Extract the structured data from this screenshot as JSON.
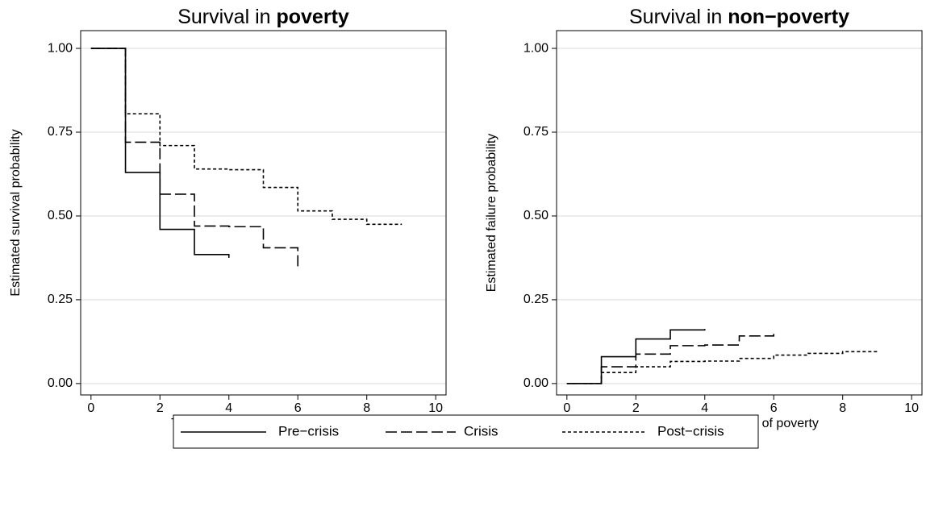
{
  "chart_data": [
    {
      "type": "step",
      "title": "Survival in",
      "title_emphasis": "poverty",
      "xlabel": "Time in years after poverty entry",
      "ylabel": "Estimated survival probability",
      "xlim": [
        -0.3,
        10.3
      ],
      "ylim": [
        -0.034,
        1.053
      ],
      "xticks": [
        0,
        2,
        4,
        6,
        8,
        10
      ],
      "yticks": [
        {
          "value": 0,
          "label": "0.00"
        },
        {
          "value": 0.25,
          "label": "0.25"
        },
        {
          "value": 0.5,
          "label": "0.50"
        },
        {
          "value": 0.75,
          "label": "0.75"
        },
        {
          "value": 1,
          "label": "1.00"
        }
      ],
      "grid": true,
      "series": [
        {
          "name": "Pre−crisis",
          "color": "#000000",
          "dash": "solid",
          "x": [
            0,
            1,
            2,
            3,
            4
          ],
          "values": [
            1,
            0.63,
            0.46,
            0.385,
            0.375
          ]
        },
        {
          "name": "Crisis",
          "color": "#000000",
          "dash": "longdash",
          "x": [
            0,
            1,
            2,
            3,
            4,
            5,
            6
          ],
          "values": [
            1,
            0.72,
            0.565,
            0.47,
            0.468,
            0.405,
            0.35
          ]
        },
        {
          "name": "Post−crisis",
          "color": "#000000",
          "dash": "shortdash",
          "x": [
            0,
            1,
            2,
            3,
            4,
            5,
            6,
            7,
            8,
            9
          ],
          "values": [
            1,
            0.805,
            0.71,
            0.64,
            0.638,
            0.585,
            0.515,
            0.49,
            0.475,
            0.473
          ]
        }
      ]
    },
    {
      "type": "step",
      "title": "Survival in",
      "title_emphasis": "non−poverty",
      "xlabel": "Time in years out of poverty",
      "ylabel": "Estimated failure probability",
      "xlim": [
        -0.3,
        10.3
      ],
      "ylim": [
        -0.034,
        1.053
      ],
      "xticks": [
        0,
        2,
        4,
        6,
        8,
        10
      ],
      "yticks": [
        {
          "value": 0,
          "label": "0.00"
        },
        {
          "value": 0.25,
          "label": "0.25"
        },
        {
          "value": 0.5,
          "label": "0.50"
        },
        {
          "value": 0.75,
          "label": "0.75"
        },
        {
          "value": 1,
          "label": "1.00"
        }
      ],
      "grid": true,
      "series": [
        {
          "color": "#000000",
          "dash": "solid",
          "x": [
            0,
            1,
            2,
            3,
            4
          ],
          "values": [
            0,
            0.08,
            0.133,
            0.16,
            0.163
          ]
        },
        {
          "color": "#000000",
          "dash": "longdash",
          "x": [
            0,
            1,
            2,
            3,
            4,
            5,
            6
          ],
          "values": [
            0,
            0.05,
            0.088,
            0.113,
            0.115,
            0.142,
            0.158
          ]
        },
        {
          "color": "#000000",
          "dash": "shortdash",
          "x": [
            0,
            1,
            2,
            3,
            4,
            5,
            6,
            7,
            8,
            9
          ],
          "values": [
            0,
            0.033,
            0.05,
            0.066,
            0.067,
            0.075,
            0.085,
            0.09,
            0.095,
            0.097
          ]
        }
      ]
    }
  ]
}
